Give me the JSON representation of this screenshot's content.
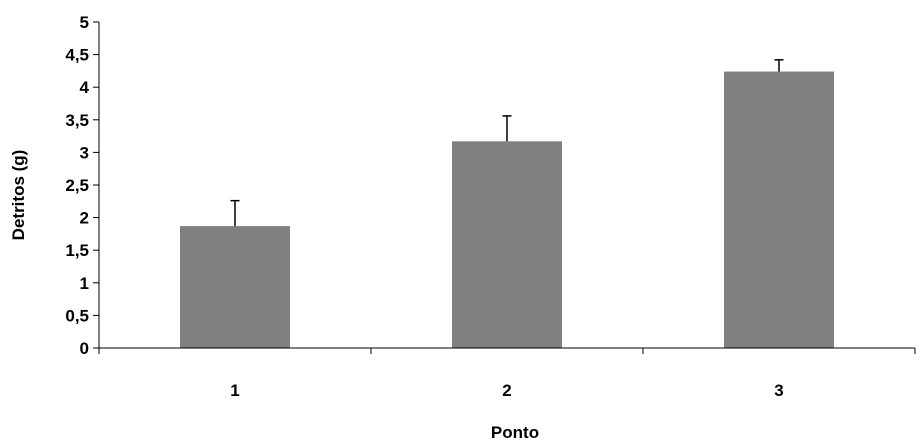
{
  "chart_data": {
    "type": "bar",
    "categories": [
      "1",
      "2",
      "3"
    ],
    "values": [
      1.87,
      3.17,
      4.24
    ],
    "error_upper": [
      0.39,
      0.39,
      0.18
    ],
    "xlabel": "Ponto",
    "ylabel": "Detritos  (g)",
    "ylim": [
      0,
      5
    ],
    "yticks": [
      "0",
      "0,5",
      "1",
      "1,5",
      "2",
      "2,5",
      "3",
      "3,5",
      "4",
      "4,5",
      "5"
    ],
    "grid": false,
    "legend": "none",
    "bar_color": "#808080",
    "axis_color": "#000000"
  }
}
